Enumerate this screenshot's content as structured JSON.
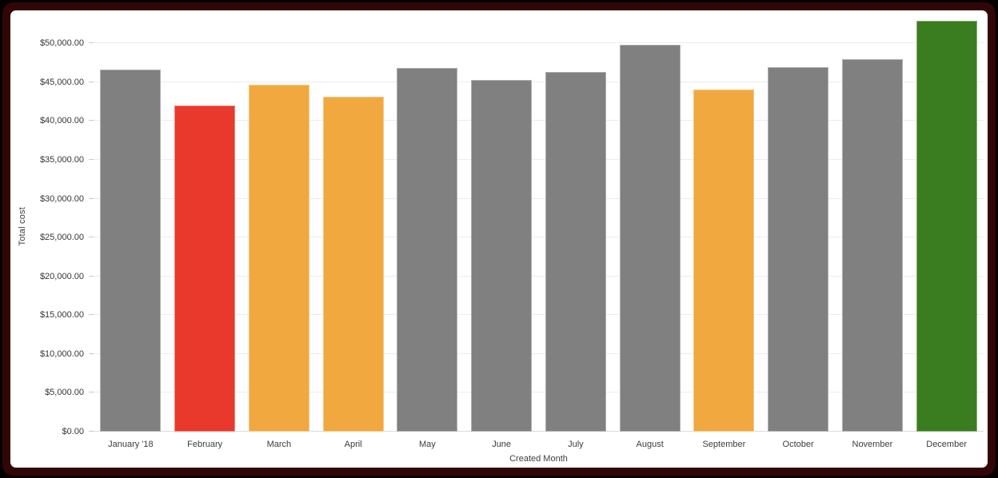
{
  "frame": {
    "outer_bg": "#050000",
    "border_color": "#320606",
    "card_bg": "#ffffff"
  },
  "chart_data": {
    "type": "bar",
    "title": "",
    "xlabel": "Created Month",
    "ylabel": "Total cost",
    "categories": [
      "January '18",
      "February",
      "March",
      "April",
      "May",
      "June",
      "July",
      "August",
      "September",
      "October",
      "November",
      "December"
    ],
    "values": [
      46600,
      42000,
      44650,
      43100,
      46800,
      45250,
      46350,
      49800,
      44050,
      46950,
      47950,
      52900
    ],
    "bar_colors": [
      "#808080",
      "#e8392c",
      "#f0a83f",
      "#f0a83f",
      "#808080",
      "#808080",
      "#808080",
      "#808080",
      "#f0a83f",
      "#808080",
      "#808080",
      "#3a7d20"
    ],
    "default_bar_color": "#808080",
    "highlight_colors": {
      "red": "#e8392c",
      "orange": "#f0a83f",
      "green": "#3a7d20"
    },
    "y_ticks": [
      0,
      5000,
      10000,
      15000,
      20000,
      25000,
      30000,
      35000,
      40000,
      45000,
      50000
    ],
    "y_tick_labels": [
      "$0.00",
      "$5,000.00",
      "$10,000.00",
      "$15,000.00",
      "$20,000.00",
      "$25,000.00",
      "$30,000.00",
      "$35,000.00",
      "$40,000.00",
      "$45,000.00",
      "$50,000.00"
    ],
    "ylim": [
      0,
      52900
    ],
    "grid": true,
    "gridline_color": "#ececec",
    "legend": "none",
    "axis_text_color": "#363636"
  }
}
